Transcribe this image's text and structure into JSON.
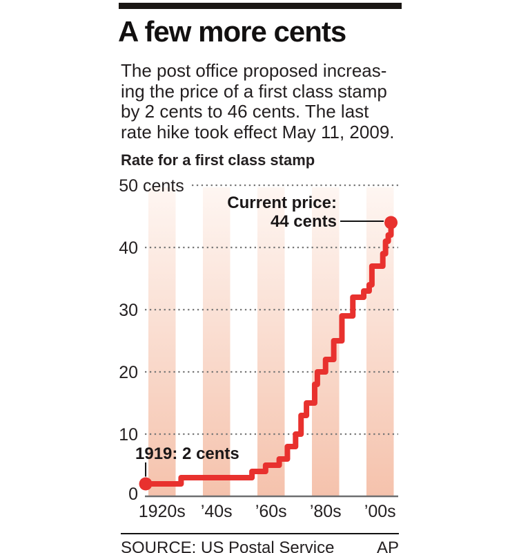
{
  "header": {
    "title": "A few more cents",
    "subtitle_lines": [
      "The post office proposed increas-",
      "ing the price of a first class stamp",
      "by 2 cents to 46 cents. The last",
      "rate hike took effect May 11, 2009."
    ]
  },
  "chart_data": {
    "type": "line",
    "subtype": "step",
    "title": "Rate for a first class stamp",
    "unit": "cents",
    "x_axis": {
      "tick_labels": [
        "1920s",
        "’40s",
        "’60s",
        "’80s",
        "’00s"
      ],
      "decade_start_years": [
        1920,
        1940,
        1960,
        1980,
        2000
      ],
      "range_years": [
        1919,
        2010
      ]
    },
    "y_axis": {
      "range": [
        0,
        50
      ],
      "gridlines": "dotted",
      "ticks": [
        {
          "value": 50,
          "label": "50",
          "suffix": "cents"
        },
        {
          "value": 40,
          "label": "40"
        },
        {
          "value": 30,
          "label": "30"
        },
        {
          "value": 20,
          "label": "20"
        },
        {
          "value": 10,
          "label": "10"
        },
        {
          "value": 0,
          "label": "0"
        }
      ]
    },
    "series": [
      {
        "name": "First class stamp rate",
        "color": "#e8312e",
        "points": [
          {
            "year": 1919,
            "rate": 2
          },
          {
            "year": 1932,
            "rate": 3
          },
          {
            "year": 1958,
            "rate": 4
          },
          {
            "year": 1963,
            "rate": 5
          },
          {
            "year": 1968,
            "rate": 6
          },
          {
            "year": 1971,
            "rate": 8
          },
          {
            "year": 1974,
            "rate": 10
          },
          {
            "year": 1976,
            "rate": 13
          },
          {
            "year": 1978,
            "rate": 15
          },
          {
            "year": 1981,
            "rate": 18
          },
          {
            "year": 1982,
            "rate": 20
          },
          {
            "year": 1985,
            "rate": 22
          },
          {
            "year": 1988,
            "rate": 25
          },
          {
            "year": 1991,
            "rate": 29
          },
          {
            "year": 1995,
            "rate": 32
          },
          {
            "year": 1999,
            "rate": 33
          },
          {
            "year": 2001,
            "rate": 34
          },
          {
            "year": 2002,
            "rate": 37
          },
          {
            "year": 2006,
            "rate": 39
          },
          {
            "year": 2007,
            "rate": 41
          },
          {
            "year": 2008,
            "rate": 42
          },
          {
            "year": 2009,
            "rate": 44
          }
        ]
      }
    ],
    "annotations": {
      "start": {
        "label": "1919: 2 cents",
        "year": 1919,
        "rate": 2
      },
      "current": {
        "label_line1": "Current price:",
        "label_line2": "44 cents",
        "year": 2009,
        "rate": 44
      }
    },
    "layout_hints": {
      "legend": "none",
      "decade_bands": true
    }
  },
  "colors": {
    "line_red": "#e8312e",
    "band_top": "#fef6f2",
    "band_bottom": "#f5c2ac",
    "grid_dot": "#767676",
    "baseline_gray": "#6d6e70",
    "connector_black": "#111111"
  },
  "footer": {
    "source": "SOURCE: US Postal Service",
    "credit": "AP"
  }
}
